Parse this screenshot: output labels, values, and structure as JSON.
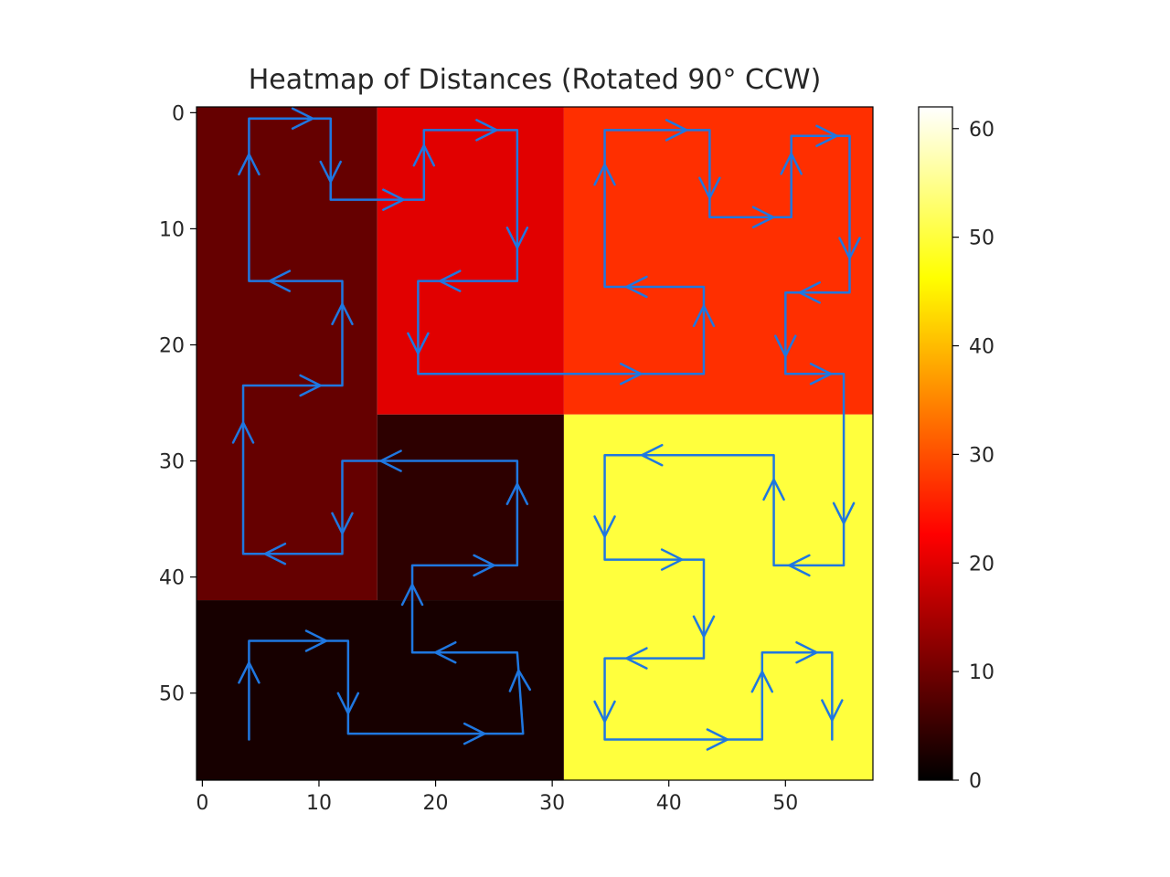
{
  "chart_data": {
    "type": "heatmap",
    "title": "Heatmap of Distances (Rotated 90° CCW)",
    "xlabel": "",
    "ylabel": "",
    "colormap": "hot",
    "grid": false,
    "x_extent": [
      -0.5,
      57.5
    ],
    "y_extent": [
      -0.5,
      57.5
    ],
    "y_inverted": true,
    "x_ticks": [
      0,
      10,
      20,
      30,
      40,
      50
    ],
    "y_ticks": [
      0,
      10,
      20,
      30,
      40,
      50
    ],
    "colorbar": {
      "range": [
        0,
        62
      ],
      "ticks": [
        0,
        10,
        20,
        30,
        40,
        50,
        60
      ]
    },
    "regions": [
      {
        "name": "upper-left",
        "x": [
          -0.5,
          15
        ],
        "y": [
          -0.5,
          42
        ],
        "value": 9
      },
      {
        "name": "upper-middle",
        "x": [
          15,
          31
        ],
        "y": [
          -0.5,
          26
        ],
        "value": 20
      },
      {
        "name": "upper-right",
        "x": [
          31,
          57.5
        ],
        "y": [
          -0.5,
          26
        ],
        "value": 27
      },
      {
        "name": "middle-band",
        "x": [
          15,
          31
        ],
        "y": [
          26,
          42
        ],
        "value": 4
      },
      {
        "name": "lower-left",
        "x": [
          -0.5,
          31
        ],
        "y": [
          42,
          57.5
        ],
        "value": 2
      },
      {
        "name": "lower-right",
        "x": [
          31,
          57.5
        ],
        "y": [
          26,
          57.5
        ],
        "value": 50
      }
    ],
    "path": [
      [
        4,
        54
      ],
      [
        4,
        45.5
      ],
      [
        12.5,
        45.5
      ],
      [
        12.5,
        53.5
      ],
      [
        27.5,
        53.5
      ],
      [
        27,
        46.5
      ],
      [
        18,
        46.5
      ],
      [
        18,
        39
      ],
      [
        27,
        39
      ],
      [
        27,
        30
      ],
      [
        12,
        30
      ],
      [
        12,
        38
      ],
      [
        3.5,
        38
      ],
      [
        3.5,
        23.5
      ],
      [
        12,
        23.5
      ],
      [
        12,
        14.5
      ],
      [
        4,
        14.5
      ],
      [
        4,
        0.5
      ],
      [
        11,
        0.5
      ],
      [
        11,
        7.5
      ],
      [
        19,
        7.5
      ],
      [
        19,
        1.5
      ],
      [
        27,
        1.5
      ],
      [
        27,
        14.5
      ],
      [
        18.5,
        14.5
      ],
      [
        18.5,
        22.5
      ],
      [
        43,
        22.5
      ],
      [
        43,
        15
      ],
      [
        34.5,
        15
      ],
      [
        34.5,
        1.5
      ],
      [
        43.5,
        1.5
      ],
      [
        43.5,
        9
      ],
      [
        50.5,
        9
      ],
      [
        50.5,
        2
      ],
      [
        55.5,
        2
      ],
      [
        55.5,
        15.5
      ],
      [
        50,
        15.5
      ],
      [
        50,
        22.5
      ],
      [
        55,
        22.5
      ],
      [
        55,
        39
      ],
      [
        49,
        39
      ],
      [
        49,
        29.5
      ],
      [
        34.5,
        29.5
      ],
      [
        34.5,
        38.5
      ],
      [
        43,
        38.5
      ],
      [
        43,
        47
      ],
      [
        34.5,
        47
      ],
      [
        34.5,
        54
      ],
      [
        48,
        54
      ],
      [
        48,
        46.5
      ],
      [
        54,
        46.5
      ],
      [
        54,
        54
      ]
    ]
  }
}
